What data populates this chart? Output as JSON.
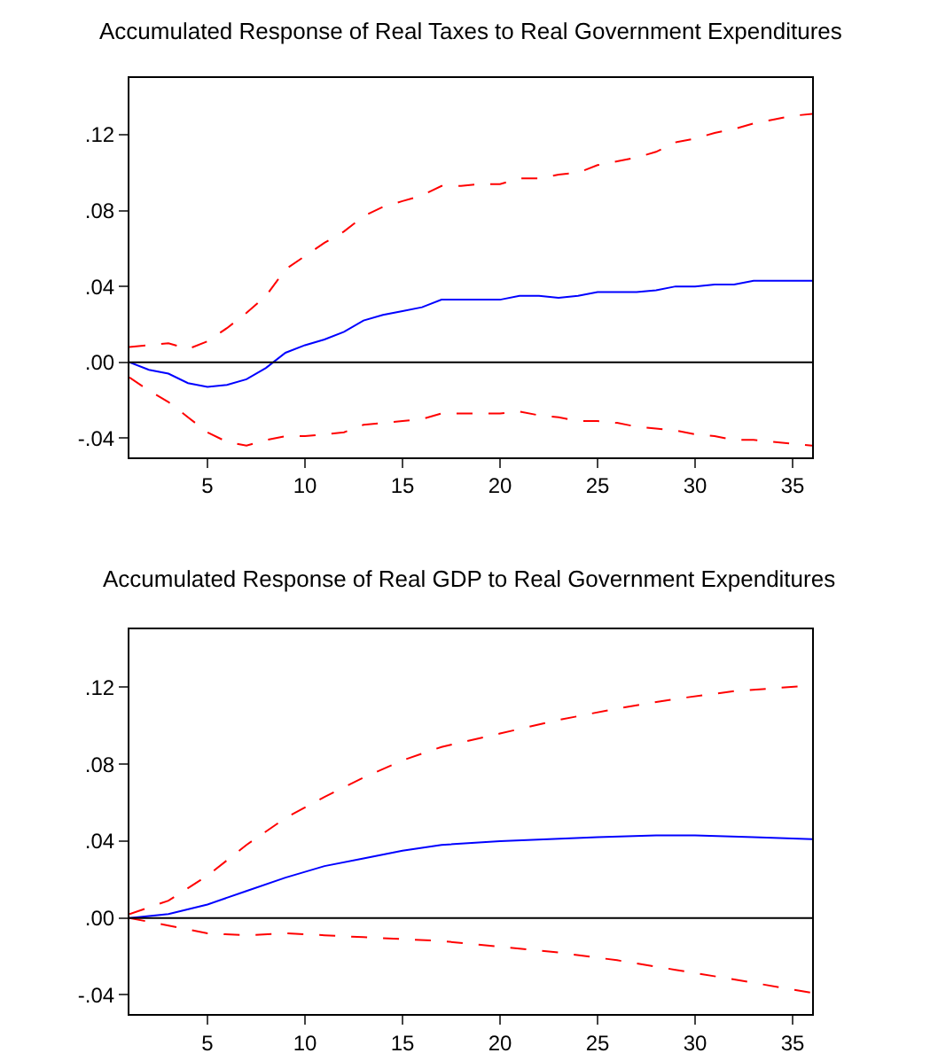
{
  "chart_data": [
    {
      "type": "line",
      "title": "Accumulated Response of Real Taxes to Real Government Expenditures",
      "xlim": [
        1,
        36
      ],
      "xticks": [
        5,
        10,
        15,
        20,
        25,
        30,
        35
      ],
      "ylim": [
        -0.05,
        0.15
      ],
      "yticks": [
        {
          "value": -0.04,
          "label": "-.04"
        },
        {
          "value": 0,
          "label": ".00"
        },
        {
          "value": 0.04,
          "label": ".04"
        },
        {
          "value": 0.08,
          "label": ".08"
        },
        {
          "value": 0.12,
          "label": ".12"
        }
      ],
      "marker": "none",
      "ref_lines": [
        {
          "axis": "y",
          "value": 0,
          "color": "#000000"
        }
      ],
      "series": [
        {
          "color": "#0000ff",
          "line_style": "solid",
          "x": [
            1,
            2,
            3,
            4,
            5,
            6,
            7,
            8,
            9,
            10,
            11,
            12,
            13,
            14,
            15,
            16,
            17,
            18,
            19,
            20,
            21,
            22,
            23,
            24,
            25,
            26,
            27,
            28,
            29,
            30,
            31,
            32,
            33,
            34,
            35,
            36
          ],
          "values": [
            0,
            -0.004,
            -0.006,
            -0.011,
            -0.013,
            -0.012,
            -0.009,
            -0.003,
            0.005,
            0.009,
            0.012,
            0.016,
            0.022,
            0.025,
            0.027,
            0.029,
            0.033,
            0.033,
            0.033,
            0.033,
            0.035,
            0.035,
            0.034,
            0.035,
            0.037,
            0.037,
            0.037,
            0.038,
            0.04,
            0.04,
            0.041,
            0.041,
            0.043,
            0.043,
            0.043,
            0.043
          ]
        },
        {
          "color": "#ff0000",
          "line_style": "dashed",
          "x": [
            1,
            2,
            3,
            4,
            5,
            6,
            7,
            8,
            9,
            10,
            11,
            12,
            13,
            14,
            15,
            16,
            17,
            18,
            19,
            20,
            21,
            22,
            23,
            24,
            25,
            26,
            27,
            28,
            29,
            30,
            31,
            32,
            33,
            34,
            35,
            36
          ],
          "values": [
            0.008,
            0.009,
            0.01,
            0.007,
            0.011,
            0.018,
            0.026,
            0.035,
            0.049,
            0.056,
            0.063,
            0.069,
            0.077,
            0.082,
            0.085,
            0.088,
            0.093,
            0.093,
            0.094,
            0.094,
            0.097,
            0.097,
            0.099,
            0.1,
            0.104,
            0.106,
            0.108,
            0.111,
            0.116,
            0.118,
            0.121,
            0.123,
            0.126,
            0.128,
            0.13,
            0.131
          ]
        },
        {
          "color": "#ff0000",
          "line_style": "dashed",
          "x": [
            1,
            2,
            3,
            4,
            5,
            6,
            7,
            8,
            9,
            10,
            11,
            12,
            13,
            14,
            15,
            16,
            17,
            18,
            19,
            20,
            21,
            22,
            23,
            24,
            25,
            26,
            27,
            28,
            29,
            30,
            31,
            32,
            33,
            34,
            35,
            36
          ],
          "values": [
            -0.008,
            -0.015,
            -0.021,
            -0.029,
            -0.037,
            -0.042,
            -0.044,
            -0.041,
            -0.039,
            -0.039,
            -0.038,
            -0.037,
            -0.033,
            -0.032,
            -0.031,
            -0.03,
            -0.027,
            -0.027,
            -0.027,
            -0.027,
            -0.026,
            -0.028,
            -0.029,
            -0.031,
            -0.031,
            -0.032,
            -0.034,
            -0.035,
            -0.036,
            -0.038,
            -0.039,
            -0.041,
            -0.041,
            -0.042,
            -0.043,
            -0.044
          ]
        }
      ]
    },
    {
      "type": "line",
      "title": "Accumulated Response of Real GDP to Real Government Expenditures",
      "xlim": [
        1,
        36
      ],
      "xticks": [
        5,
        10,
        15,
        20,
        25,
        30,
        35
      ],
      "ylim": [
        -0.05,
        0.15
      ],
      "yticks": [
        {
          "value": -0.04,
          "label": "-.04"
        },
        {
          "value": 0,
          "label": ".00"
        },
        {
          "value": 0.04,
          "label": ".04"
        },
        {
          "value": 0.08,
          "label": ".08"
        },
        {
          "value": 0.12,
          "label": ".12"
        }
      ],
      "marker": "none",
      "ref_lines": [
        {
          "axis": "y",
          "value": 0,
          "color": "#000000"
        }
      ],
      "series": [
        {
          "color": "#0000ff",
          "line_style": "solid",
          "x": [
            1,
            3,
            5,
            7,
            9,
            11,
            13,
            15,
            17,
            20,
            25,
            28,
            30,
            33,
            36
          ],
          "values": [
            0,
            0.002,
            0.007,
            0.014,
            0.021,
            0.027,
            0.031,
            0.035,
            0.038,
            0.04,
            0.042,
            0.043,
            0.043,
            0.042,
            0.041
          ]
        },
        {
          "color": "#ff0000",
          "line_style": "dashed",
          "x": [
            1,
            3,
            5,
            7,
            9,
            11,
            13,
            15,
            17,
            20,
            23,
            26,
            29,
            32,
            36
          ],
          "values": [
            0.002,
            0.009,
            0.022,
            0.038,
            0.052,
            0.063,
            0.073,
            0.082,
            0.089,
            0.096,
            0.103,
            0.109,
            0.114,
            0.118,
            0.121
          ]
        },
        {
          "color": "#ff0000",
          "line_style": "dashed",
          "x": [
            1,
            3,
            5,
            7,
            9,
            11,
            13,
            15,
            17,
            20,
            23,
            26,
            29,
            32,
            36
          ],
          "values": [
            0,
            -0.004,
            -0.008,
            -0.009,
            -0.008,
            -0.009,
            -0.01,
            -0.011,
            -0.012,
            -0.015,
            -0.018,
            -0.022,
            -0.027,
            -0.032,
            -0.039
          ]
        }
      ]
    }
  ]
}
